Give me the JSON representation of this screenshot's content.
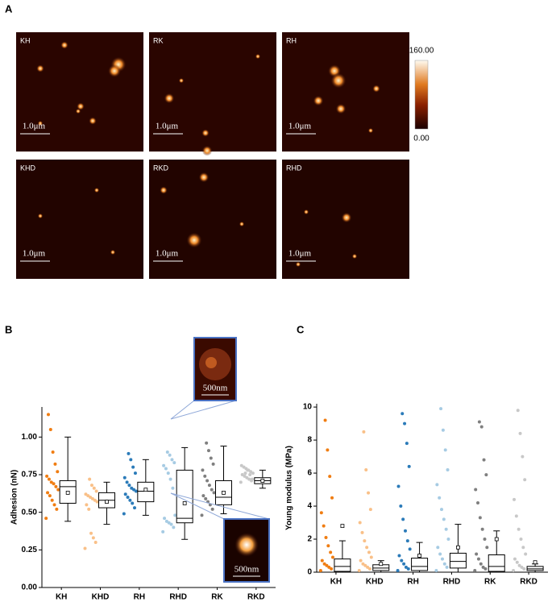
{
  "figure": {
    "panel_labels": [
      "A",
      "B",
      "C"
    ],
    "images": [
      {
        "label": "KH",
        "scale": "1.0μm"
      },
      {
        "label": "RK",
        "scale": "1.0μm"
      },
      {
        "label": "RH",
        "scale": "1.0μm"
      },
      {
        "label": "KHD",
        "scale": "1.0μm"
      },
      {
        "label": "RKD",
        "scale": "1.0μm"
      },
      {
        "label": "RHD",
        "scale": "1.0μm"
      }
    ],
    "colorbar": {
      "max": "160.00",
      "min": "0.00"
    },
    "insets": [
      "500nm",
      "500nm"
    ]
  },
  "chart_data": [
    {
      "type": "box-scatter",
      "y_label": "Adhesion (nN)",
      "categories": [
        "KH",
        "KHD",
        "RH",
        "RHD",
        "RK",
        "RKD"
      ],
      "colors": [
        "#f07d12",
        "#f9c088",
        "#2b7bb9",
        "#a6cbe3",
        "#7f7f7f",
        "#c8c8c8"
      ],
      "ylim": [
        0,
        1.2
      ],
      "yticks": [
        {
          "value": 0,
          "label": "0.00"
        },
        {
          "value": 0.25,
          "label": "0.25"
        },
        {
          "value": 0.5,
          "label": "0.50"
        },
        {
          "value": 0.75,
          "label": "0.75"
        },
        {
          "value": 1,
          "label": "1.00"
        }
      ],
      "points": [
        [
          0.46,
          0.52,
          0.55,
          0.58,
          0.61,
          0.63,
          0.65,
          0.67,
          0.69,
          0.7,
          0.72,
          0.74,
          0.77,
          0.82,
          0.9,
          1.05,
          1.15
        ],
        [
          0.26,
          0.3,
          0.33,
          0.36,
          0.52,
          0.55,
          0.57,
          0.58,
          0.59,
          0.6,
          0.61,
          0.62,
          0.64,
          0.66,
          0.68,
          0.72
        ],
        [
          0.49,
          0.53,
          0.56,
          0.58,
          0.6,
          0.62,
          0.64,
          0.65,
          0.66,
          0.68,
          0.7,
          0.73,
          0.76,
          0.8,
          0.85,
          0.89
        ],
        [
          0.37,
          0.4,
          0.42,
          0.43,
          0.44,
          0.46,
          0.48,
          0.66,
          0.72,
          0.76,
          0.79,
          0.81,
          0.83,
          0.85,
          0.88,
          0.9
        ],
        [
          0.48,
          0.52,
          0.55,
          0.57,
          0.59,
          0.61,
          0.63,
          0.65,
          0.68,
          0.71,
          0.74,
          0.78,
          0.82,
          0.86,
          0.91,
          0.96
        ],
        [
          0.7,
          0.71,
          0.72,
          0.73,
          0.74,
          0.75,
          0.76,
          0.77,
          0.78,
          0.79,
          0.8,
          0.81,
          0.72,
          0.75,
          0.78,
          0.76
        ]
      ],
      "boxes": [
        {
          "low": 0.44,
          "q1": 0.56,
          "median": 0.67,
          "q3": 0.71,
          "high": 1.0,
          "mean": 0.63
        },
        {
          "low": 0.42,
          "q1": 0.53,
          "median": 0.58,
          "q3": 0.63,
          "high": 0.7,
          "mean": 0.57
        },
        {
          "low": 0.48,
          "q1": 0.57,
          "median": 0.64,
          "q3": 0.7,
          "high": 0.85,
          "mean": 0.65
        },
        {
          "low": 0.32,
          "q1": 0.43,
          "median": 0.46,
          "q3": 0.78,
          "high": 0.93,
          "mean": 0.56
        },
        {
          "low": 0.49,
          "q1": 0.55,
          "median": 0.6,
          "q3": 0.71,
          "high": 0.94,
          "mean": 0.63
        },
        {
          "low": 0.66,
          "q1": 0.69,
          "median": 0.71,
          "q3": 0.73,
          "high": 0.78,
          "mean": 0.71
        }
      ]
    },
    {
      "type": "box-scatter",
      "y_label": "Young modulus (MPa)",
      "categories": [
        "KH",
        "KHD",
        "RH",
        "RHD",
        "RK",
        "RKD"
      ],
      "colors": [
        "#f07d12",
        "#f9c088",
        "#2b7bb9",
        "#a6cbe3",
        "#7f7f7f",
        "#c8c8c8"
      ],
      "ylim": [
        0,
        10.2
      ],
      "yticks": [
        0,
        2,
        4,
        6,
        8,
        10
      ],
      "points": [
        [
          0.1,
          0.2,
          0.3,
          0.4,
          0.5,
          0.7,
          0.9,
          1.2,
          1.6,
          2.1,
          2.8,
          3.6,
          4.5,
          5.8,
          7.4,
          9.2
        ],
        [
          0.1,
          0.2,
          0.3,
          0.4,
          0.5,
          0.7,
          0.9,
          1.2,
          1.5,
          1.9,
          2.4,
          3.0,
          3.8,
          4.8,
          6.2,
          8.5
        ],
        [
          0.1,
          0.2,
          0.3,
          0.5,
          0.7,
          1.0,
          1.4,
          1.9,
          2.5,
          3.2,
          4.0,
          5.2,
          6.4,
          7.8,
          9.0,
          9.6
        ],
        [
          0.1,
          0.3,
          0.5,
          0.8,
          1.1,
          1.5,
          2.0,
          2.6,
          3.2,
          3.8,
          4.5,
          5.3,
          6.2,
          7.4,
          8.6,
          9.9
        ],
        [
          0.1,
          0.2,
          0.3,
          0.5,
          0.8,
          1.1,
          1.5,
          2.0,
          2.6,
          3.3,
          4.2,
          5.0,
          5.9,
          6.8,
          8.8,
          9.1
        ],
        [
          0.1,
          0.2,
          0.3,
          0.4,
          0.6,
          0.8,
          1.1,
          1.5,
          2.0,
          2.6,
          3.4,
          4.4,
          5.6,
          7.0,
          8.4,
          9.8
        ]
      ],
      "boxes": [
        {
          "low": 0,
          "q1": 0.05,
          "median": 0.35,
          "q3": 0.8,
          "high": 1.9,
          "mean": 2.8
        },
        {
          "low": 0,
          "q1": 0.1,
          "median": 0.25,
          "q3": 0.45,
          "high": 0.7,
          "mean": 0.5
        },
        {
          "low": 0,
          "q1": 0.1,
          "median": 0.35,
          "q3": 0.85,
          "high": 1.8,
          "mean": 1.0
        },
        {
          "low": 0,
          "q1": 0.25,
          "median": 0.65,
          "q3": 1.15,
          "high": 2.9,
          "mean": 1.5
        },
        {
          "low": 0,
          "q1": 0.05,
          "median": 0.35,
          "q3": 1.05,
          "high": 2.5,
          "mean": 2.0
        },
        {
          "low": 0,
          "q1": 0.1,
          "median": 0.2,
          "q3": 0.35,
          "high": 0.5,
          "mean": 0.6
        }
      ]
    }
  ]
}
